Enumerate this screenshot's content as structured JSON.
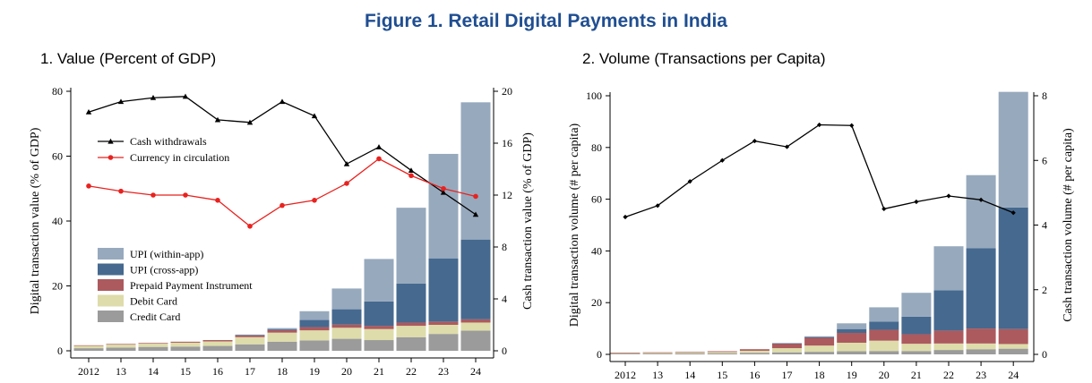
{
  "figure_title": "Figure 1. Retail Digital Payments in India",
  "colors": {
    "title": "#1f4e91",
    "upi_within": "#97a9bd",
    "upi_cross": "#46698f",
    "ppi": "#ac5a5e",
    "debit": "#dedcaa",
    "credit": "#9b9b9b",
    "cash_withdrawals": "#000000",
    "currency": "#e8221f"
  },
  "chart_data": [
    {
      "type": "bar",
      "panel_title": "1. Value (Percent of GDP)",
      "categories": [
        "2012",
        "13",
        "14",
        "15",
        "16",
        "17",
        "18",
        "19",
        "20",
        "21",
        "22",
        "23",
        "24"
      ],
      "ylabel": "Digital transaction value (% of GDP)",
      "y2label": "Cash transaction value (% of GDP)",
      "ylim": [
        0,
        80
      ],
      "y2lim": [
        0,
        20
      ],
      "yticks": [
        0,
        20,
        40,
        60,
        80
      ],
      "y2ticks": [
        0,
        4,
        8,
        12,
        16,
        20
      ],
      "stacked": true,
      "series": [
        {
          "name": "Credit Card",
          "color_key": "credit",
          "values": [
            0.8,
            1.0,
            1.2,
            1.3,
            1.5,
            2.0,
            2.8,
            3.2,
            3.7,
            3.3,
            4.2,
            5.2,
            6.2
          ]
        },
        {
          "name": "Debit Card",
          "color_key": "debit",
          "values": [
            0.8,
            0.9,
            1.0,
            1.2,
            1.4,
            2.2,
            2.8,
            3.1,
            3.4,
            3.4,
            3.5,
            2.8,
            2.5
          ]
        },
        {
          "name": "Prepaid Payment Instrument",
          "color_key": "ppi",
          "values": [
            0.1,
            0.2,
            0.2,
            0.3,
            0.4,
            0.6,
            0.8,
            1.0,
            1.0,
            1.0,
            1.0,
            1.0,
            1.0
          ]
        },
        {
          "name": "UPI (cross-app)",
          "color_key": "upi_cross",
          "values": [
            0,
            0,
            0,
            0,
            0,
            0.1,
            0.3,
            2.2,
            4.7,
            7.5,
            12.0,
            19.5,
            24.6
          ]
        },
        {
          "name": "UPI (within-app)",
          "color_key": "upi_within",
          "values": [
            0,
            0,
            0,
            0,
            0,
            0.1,
            0.3,
            2.7,
            6.4,
            13.1,
            23.4,
            32.2,
            42.3
          ]
        }
      ],
      "lines": [
        {
          "name": "Cash withdrawals",
          "color_key": "cash_withdrawals",
          "marker": "triangle",
          "axis": "right",
          "values": [
            18.4,
            19.2,
            19.5,
            19.6,
            17.8,
            17.6,
            19.2,
            18.1,
            14.4,
            15.7,
            13.9,
            12.2,
            10.5
          ]
        },
        {
          "name": "Currency in circulation",
          "color_key": "currency",
          "marker": "circle",
          "axis": "right",
          "values": [
            12.7,
            12.3,
            12.0,
            12.0,
            11.6,
            9.6,
            11.2,
            11.6,
            12.9,
            14.8,
            13.5,
            12.5,
            11.9
          ]
        }
      ],
      "legend_bars": [
        "UPI (within-app)",
        "UPI (cross-app)",
        "Prepaid Payment Instrument",
        "Debit Card",
        "Credit Card"
      ],
      "legend_lines": [
        "Cash withdrawals",
        "Currency in circulation"
      ]
    },
    {
      "type": "bar",
      "panel_title": "2. Volume (Transactions per Capita)",
      "categories": [
        "2012",
        "13",
        "14",
        "15",
        "16",
        "17",
        "18",
        "19",
        "20",
        "21",
        "22",
        "23",
        "24"
      ],
      "ylabel": "Digital transaction volume (# per capita)",
      "y2label": "Cash transaction volume (# per capita)",
      "ylim": [
        0,
        100
      ],
      "y2lim": [
        0,
        8
      ],
      "yticks": [
        0,
        20,
        40,
        60,
        80,
        100
      ],
      "y2ticks": [
        0,
        2,
        4,
        6,
        8
      ],
      "stacked": true,
      "series": [
        {
          "name": "Credit Card",
          "color_key": "credit",
          "values": [
            0.3,
            0.3,
            0.4,
            0.4,
            0.6,
            0.8,
            1.0,
            1.2,
            1.3,
            1.3,
            1.7,
            2.0,
            2.2
          ]
        },
        {
          "name": "Debit Card",
          "color_key": "debit",
          "values": [
            0.3,
            0.4,
            0.4,
            0.5,
            0.8,
            1.6,
            2.4,
            3.3,
            4.0,
            2.8,
            2.5,
            2.2,
            1.8
          ]
        },
        {
          "name": "Prepaid Payment Instrument",
          "color_key": "ppi",
          "values": [
            0.1,
            0.1,
            0.2,
            0.3,
            0.6,
            1.8,
            3.0,
            3.8,
            4.2,
            3.7,
            5.0,
            5.8,
            5.8
          ]
        },
        {
          "name": "UPI (cross-app)",
          "color_key": "upi_cross",
          "values": [
            0,
            0,
            0,
            0,
            0,
            0.1,
            0.3,
            1.5,
            3.2,
            6.8,
            15.6,
            31.0,
            47.0
          ]
        },
        {
          "name": "UPI (within-app)",
          "color_key": "upi_within",
          "values": [
            0,
            0,
            0,
            0,
            0,
            0.1,
            0.3,
            2.2,
            5.5,
            9.2,
            17.0,
            28.3,
            44.7
          ]
        }
      ],
      "lines": [
        {
          "name": "Cash withdrawals",
          "color_key": "cash_withdrawals",
          "marker": "diamond",
          "axis": "right",
          "values": [
            4.25,
            4.6,
            5.35,
            6.0,
            6.6,
            6.42,
            7.1,
            7.08,
            4.5,
            4.72,
            4.9,
            4.78,
            4.38
          ]
        }
      ]
    }
  ]
}
